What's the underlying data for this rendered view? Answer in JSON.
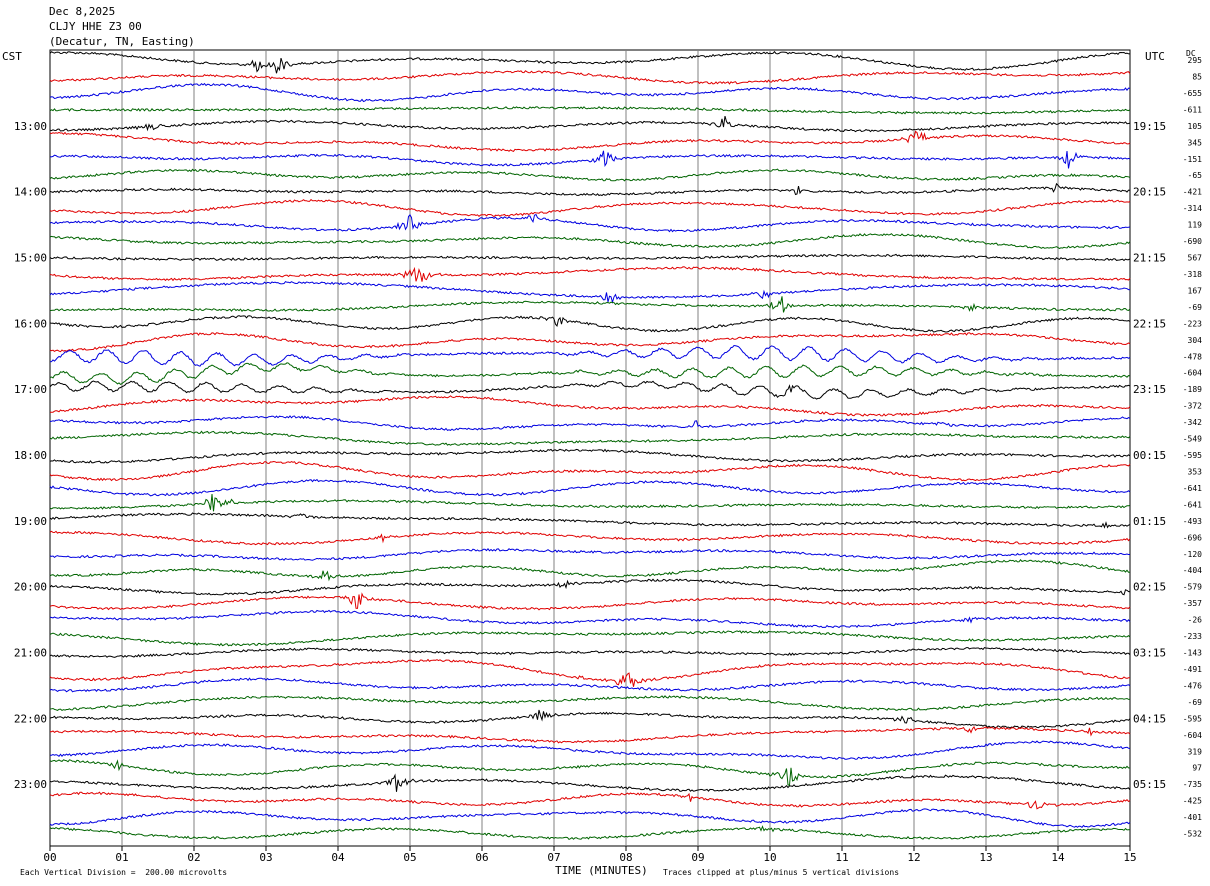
{
  "header": {
    "date": "Dec 8,2025",
    "station": "CLJY HHE Z3 00",
    "location": "(Decatur, TN, Easting)"
  },
  "left_zone": "CST",
  "right_zone": "UTC",
  "dc_label": "DC",
  "footer": {
    "scale_note": "Each Vertical Division =  200.00 microvolts",
    "xlabel": "TIME (MINUTES)",
    "clip_note": "Traces clipped at plus/minus 5 vertical divisions"
  },
  "chart_data": {
    "type": "line",
    "title": "CLJY HHE Z3 00",
    "xlabel": "TIME (MINUTES)",
    "x_ticks": [
      "00",
      "01",
      "02",
      "03",
      "04",
      "05",
      "06",
      "07",
      "08",
      "09",
      "10",
      "11",
      "12",
      "13",
      "14",
      "15"
    ],
    "xlim": [
      0,
      15
    ],
    "trace_colors": [
      "#000000",
      "#e00000",
      "#0000e0",
      "#006400"
    ],
    "left_time_labels": [
      "13:00",
      "14:00",
      "15:00",
      "16:00",
      "17:00",
      "18:00",
      "19:00",
      "20:00",
      "21:00",
      "22:00",
      "23:00"
    ],
    "right_time_labels": [
      "19:15",
      "20:15",
      "21:15",
      "22:15",
      "23:15",
      "00:15",
      "01:15",
      "02:15",
      "03:15",
      "04:15",
      "05:15"
    ],
    "first_hour_label_row": 4,
    "dc_offsets": [
      "295",
      "85",
      "-655",
      "-611",
      "105",
      "345",
      "-151",
      "-65",
      "-421",
      "-314",
      "119",
      "-690",
      "567",
      "-318",
      "167",
      "-69",
      "-223",
      "304",
      "-478",
      "-604",
      "-189",
      "-372",
      "-342",
      "-549",
      "-595",
      "353",
      "-641",
      "-641",
      "-493",
      "-696",
      "-120",
      "-404",
      "-579",
      "-357",
      "-26",
      "-233",
      "-143",
      "-491",
      "-476",
      "-69",
      "-595",
      "-604",
      "319",
      "97",
      "-735",
      "-425",
      "-401",
      "-532"
    ]
  }
}
